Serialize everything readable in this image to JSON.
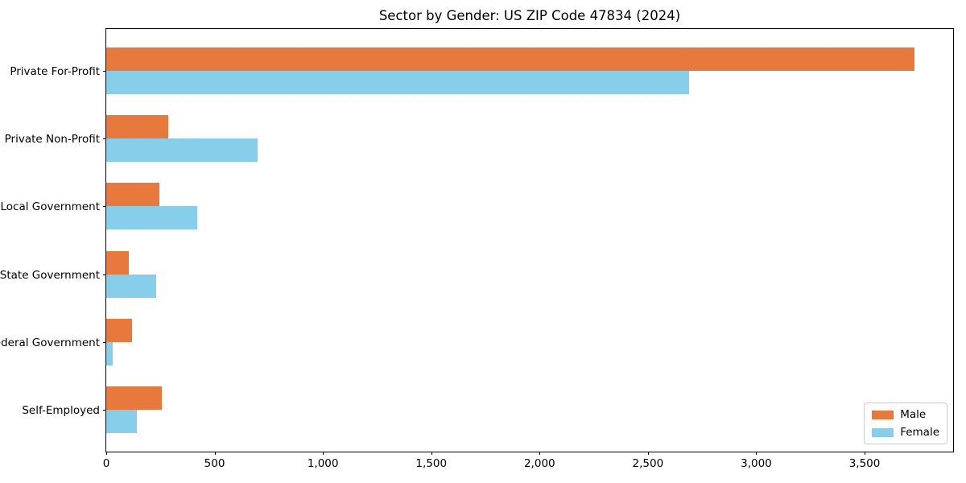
{
  "chart": {
    "title": "Sector by Gender: US ZIP Code 47834 (2024)"
  },
  "chart_data": {
    "type": "bar",
    "orientation": "horizontal",
    "title": "Sector by Gender: US ZIP Code 47834 (2024)",
    "categories": [
      "Private For-Profit",
      "Private Non-Profit",
      "Local Government",
      "State Government",
      "Federal Government",
      "Self-Employed"
    ],
    "series": [
      {
        "name": "Male",
        "color": "#e8793d",
        "values": [
          3730,
          285,
          245,
          105,
          120,
          255
        ]
      },
      {
        "name": "Female",
        "color": "#87ceeb",
        "values": [
          2690,
          700,
          420,
          230,
          30,
          140
        ]
      }
    ],
    "xlabel": "",
    "ylabel": "",
    "xlim": [
      0,
      3916
    ],
    "xticks": [
      0,
      500,
      1000,
      1500,
      2000,
      2500,
      3000,
      3500
    ],
    "xtick_labels": [
      "0",
      "500",
      "1,000",
      "1,500",
      "2,000",
      "2,500",
      "3,000",
      "3,500"
    ],
    "grid": false,
    "legend_position": "lower right",
    "legend": {
      "items": [
        {
          "label": "Male",
          "color": "#e8793d"
        },
        {
          "label": "Female",
          "color": "#87ceeb"
        }
      ]
    }
  }
}
